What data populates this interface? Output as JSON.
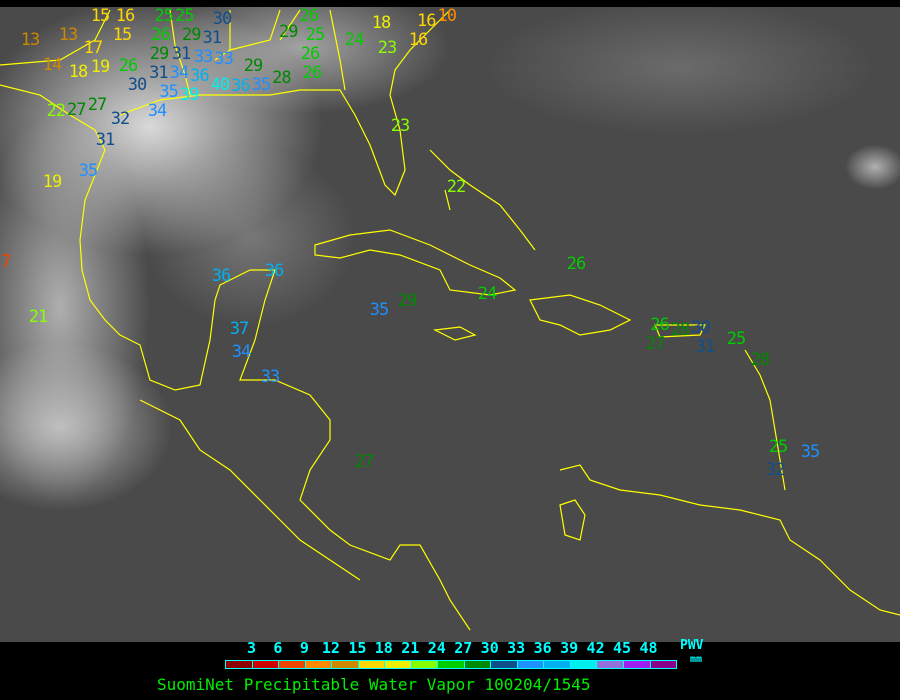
{
  "title": "SuomiNet Precipitable Water Vapor 100204/1545",
  "legend": {
    "unit_label": "PWV",
    "unit": "mm",
    "ticks": [
      "3",
      "6",
      "9",
      "12",
      "15",
      "18",
      "21",
      "24",
      "27",
      "30",
      "33",
      "36",
      "39",
      "42",
      "45",
      "48"
    ],
    "colors": [
      "#8b0000",
      "#cc0000",
      "#ee4400",
      "#ff8800",
      "#cc8800",
      "#ffd700",
      "#eeee00",
      "#88ff00",
      "#00cc00",
      "#008800",
      "#104e8b",
      "#1e90ff",
      "#00b0f0",
      "#00eeee",
      "#9370db",
      "#a020f0",
      "#8b008b"
    ]
  },
  "map": {
    "coastline_color": "#ffff00",
    "stations": [
      {
        "v": "13"
      },
      {
        "v": "13"
      },
      {
        "v": "15"
      },
      {
        "v": "16"
      },
      {
        "v": "15"
      },
      {
        "v": "17"
      },
      {
        "v": "14"
      },
      {
        "v": "18"
      },
      {
        "v": "19"
      },
      {
        "v": "26"
      },
      {
        "v": "30"
      },
      {
        "v": "29"
      },
      {
        "v": "31"
      },
      {
        "v": "31"
      },
      {
        "v": "33"
      },
      {
        "v": "33"
      },
      {
        "v": "31"
      },
      {
        "v": "34"
      },
      {
        "v": "36"
      },
      {
        "v": "35"
      },
      {
        "v": "39"
      },
      {
        "v": "40"
      },
      {
        "v": "36"
      },
      {
        "v": "35"
      },
      {
        "v": "29"
      },
      {
        "v": "28"
      },
      {
        "v": "25"
      },
      {
        "v": "25"
      },
      {
        "v": "26"
      },
      {
        "v": "29"
      },
      {
        "v": "30"
      },
      {
        "v": "22"
      },
      {
        "v": "27"
      },
      {
        "v": "27"
      },
      {
        "v": "32"
      },
      {
        "v": "34"
      },
      {
        "v": "31"
      },
      {
        "v": "35"
      },
      {
        "v": "19"
      },
      {
        "v": "21"
      },
      {
        "v": "7"
      },
      {
        "v": "29"
      },
      {
        "v": "26"
      },
      {
        "v": "25"
      },
      {
        "v": "26"
      },
      {
        "v": "26"
      },
      {
        "v": "24"
      },
      {
        "v": "23"
      },
      {
        "v": "18"
      },
      {
        "v": "16"
      },
      {
        "v": "16"
      },
      {
        "v": "10"
      },
      {
        "v": "23"
      },
      {
        "v": "22"
      },
      {
        "v": "26"
      },
      {
        "v": "24"
      },
      {
        "v": "35"
      },
      {
        "v": "29"
      },
      {
        "v": "36"
      },
      {
        "v": "36"
      },
      {
        "v": "37"
      },
      {
        "v": "34"
      },
      {
        "v": "33"
      },
      {
        "v": "27"
      },
      {
        "v": "26"
      },
      {
        "v": "28"
      },
      {
        "v": "30"
      },
      {
        "v": "27"
      },
      {
        "v": "31"
      },
      {
        "v": "25"
      },
      {
        "v": "28"
      },
      {
        "v": "25"
      },
      {
        "v": "35"
      },
      {
        "v": "32"
      }
    ]
  }
}
